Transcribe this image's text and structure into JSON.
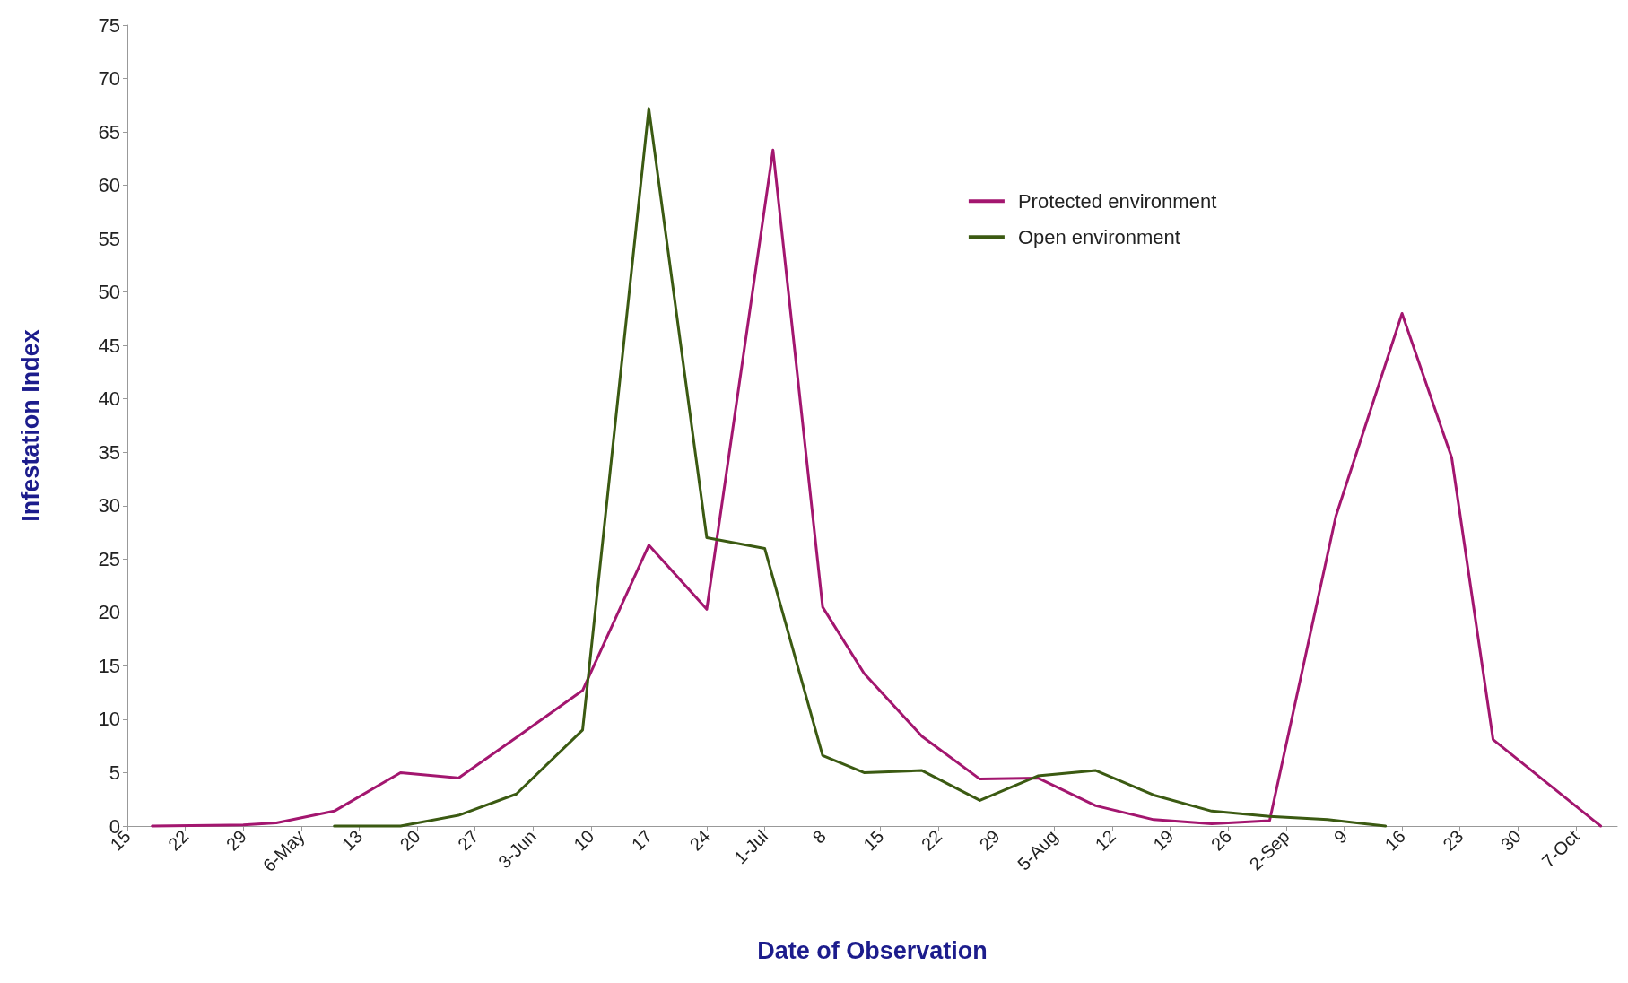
{
  "chart_data": {
    "type": "line",
    "xlabel": "Date of Observation",
    "ylabel": "Infestation Index",
    "xlim": [
      "--04-15",
      "--10-12"
    ],
    "ylim": [
      0,
      75
    ],
    "yticks": [
      0,
      5,
      10,
      15,
      20,
      25,
      30,
      35,
      40,
      45,
      50,
      55,
      60,
      65,
      70,
      75
    ],
    "xticks": [
      {
        "value": "--04-15",
        "label": "15"
      },
      {
        "value": "--04-22",
        "label": "22"
      },
      {
        "value": "--04-29",
        "label": "29"
      },
      {
        "value": "--05-06",
        "label": "6-May"
      },
      {
        "value": "--05-13",
        "label": "13"
      },
      {
        "value": "--05-20",
        "label": "20"
      },
      {
        "value": "--05-27",
        "label": "27"
      },
      {
        "value": "--06-03",
        "label": "3-Jun"
      },
      {
        "value": "--06-10",
        "label": "10"
      },
      {
        "value": "--06-17",
        "label": "17"
      },
      {
        "value": "--06-24",
        "label": "24"
      },
      {
        "value": "--07-01",
        "label": "1-Jul"
      },
      {
        "value": "--07-08",
        "label": "8"
      },
      {
        "value": "--07-15",
        "label": "15"
      },
      {
        "value": "--07-22",
        "label": "22"
      },
      {
        "value": "--07-29",
        "label": "29"
      },
      {
        "value": "--08-05",
        "label": "5-Aug"
      },
      {
        "value": "--08-12",
        "label": "12"
      },
      {
        "value": "--08-19",
        "label": "19"
      },
      {
        "value": "--08-26",
        "label": "26"
      },
      {
        "value": "--09-02",
        "label": "2-Sep"
      },
      {
        "value": "--09-09",
        "label": "9"
      },
      {
        "value": "--09-16",
        "label": "16"
      },
      {
        "value": "--09-23",
        "label": "23"
      },
      {
        "value": "--09-30",
        "label": "30"
      },
      {
        "value": "--10-07",
        "label": "7-Oct"
      }
    ],
    "grid": false,
    "legend": "top right",
    "marker": "none",
    "line_style": "solid",
    "series": [
      {
        "name": "Protected environment",
        "color": "#a3166f",
        "x": [
          "--04-18",
          "--04-29",
          "--05-03",
          "--05-10",
          "--05-18",
          "--05-25",
          "--06-01",
          "--06-09",
          "--06-17",
          "--06-24",
          "--07-02",
          "--07-08",
          "--07-13",
          "--07-20",
          "--07-27",
          "--08-03",
          "--08-10",
          "--08-17",
          "--08-24",
          "--08-31",
          "--09-08",
          "--09-16",
          "--09-22",
          "--09-27",
          "--10-10"
        ],
        "values": [
          0,
          0.1,
          0.3,
          1.4,
          5,
          4.5,
          8.3,
          12.7,
          26.3,
          20.3,
          63.3,
          20.5,
          14.3,
          8.4,
          4.4,
          4.5,
          1.9,
          0.6,
          0.2,
          0.5,
          29,
          48,
          34.5,
          8.1,
          0
        ]
      },
      {
        "name": "Open environment",
        "color": "#3b5a12",
        "x": [
          "--05-10",
          "--05-18",
          "--05-25",
          "--06-01",
          "--06-09",
          "--06-17",
          "--06-24",
          "--07-01",
          "--07-08",
          "--07-13",
          "--07-20",
          "--07-27",
          "--08-03",
          "--08-10",
          "--08-17",
          "--08-24",
          "--08-31",
          "--09-07",
          "--09-14"
        ],
        "values": [
          0,
          0,
          1,
          3,
          9,
          67.2,
          27,
          26,
          6.6,
          5,
          5.2,
          2.4,
          4.7,
          5.2,
          2.9,
          1.4,
          0.9,
          0.6,
          0
        ]
      }
    ]
  }
}
